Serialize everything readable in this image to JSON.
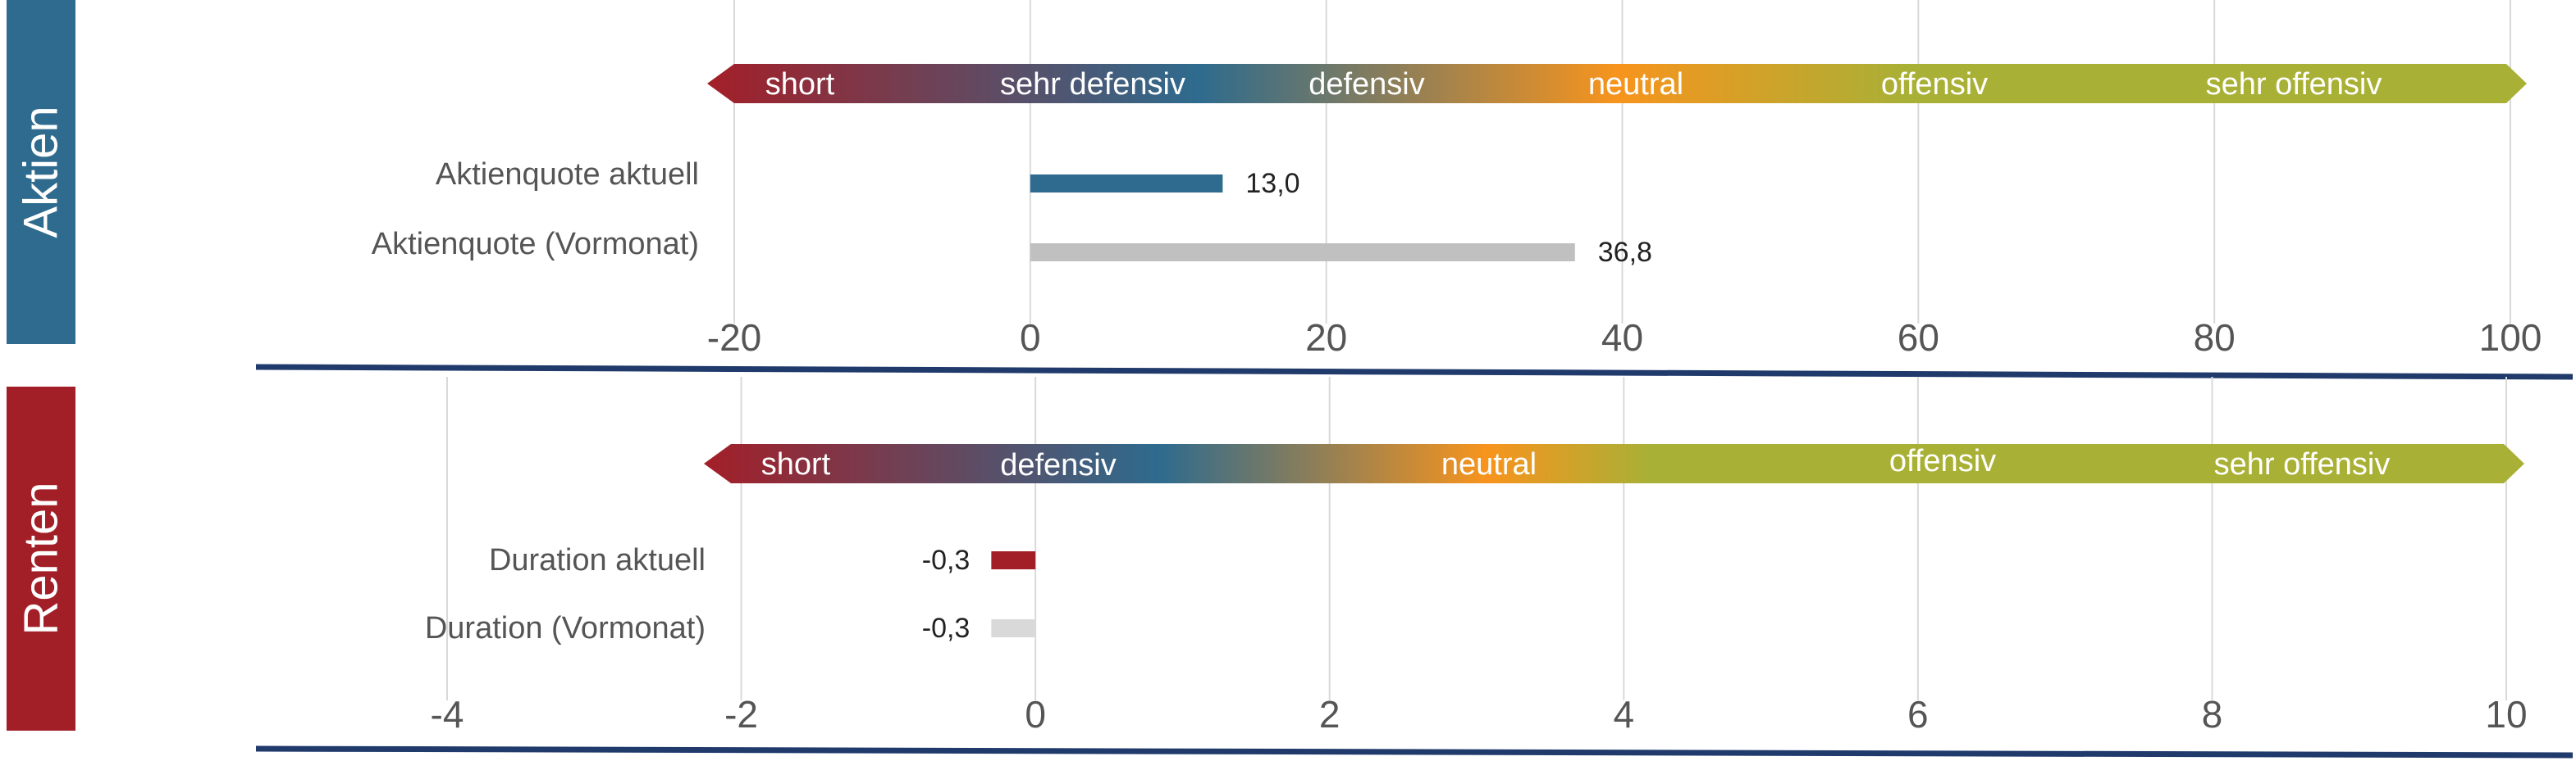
{
  "colors": {
    "aktien_accent": "#2E6B8E",
    "renten_accent": "#A31F28",
    "current_aktien": "#2E6B8E",
    "current_renten": "#A31F28",
    "previous_aktien": "#C0C0C0",
    "previous_renten": "#D9D9D9",
    "gradient": [
      "#A31F28",
      "#2E6B8E",
      "#F7941D",
      "#A9B036"
    ],
    "baseline": "#1F3A6B",
    "grid": "#D9D9D9"
  },
  "chart_data": [
    {
      "type": "bar",
      "orientation": "horizontal",
      "panel_label": "Aktien",
      "scale_zones": [
        "short",
        "sehr defensiv",
        "defensiv",
        "neutral",
        "offensiv",
        "sehr offensiv"
      ],
      "categories": [
        "Aktienquote aktuell",
        "Aktienquote (Vormonat)"
      ],
      "values": [
        13.0,
        36.8
      ],
      "value_labels": [
        "13,0",
        "36,8"
      ],
      "xlim": [
        -20,
        100
      ],
      "xticks": [
        -20,
        0,
        20,
        40,
        60,
        80,
        100
      ],
      "tick_labels": [
        "-20",
        "0",
        "20",
        "40",
        "60",
        "80",
        "100"
      ],
      "grid": true
    },
    {
      "type": "bar",
      "orientation": "horizontal",
      "panel_label": "Renten",
      "scale_zones": [
        "short",
        "defensiv",
        "neutral",
        "offensiv",
        "sehr offensiv"
      ],
      "categories": [
        "Duration aktuell",
        "Duration (Vormonat)"
      ],
      "values": [
        -0.3,
        -0.3
      ],
      "value_labels": [
        "-0,3",
        "-0,3"
      ],
      "xlim": [
        -4,
        10
      ],
      "xticks": [
        -4,
        -2,
        0,
        2,
        4,
        6,
        8,
        10
      ],
      "tick_labels": [
        "-4",
        "-2",
        "0",
        "2",
        "4",
        "6",
        "8",
        "10"
      ],
      "grid": true
    }
  ]
}
